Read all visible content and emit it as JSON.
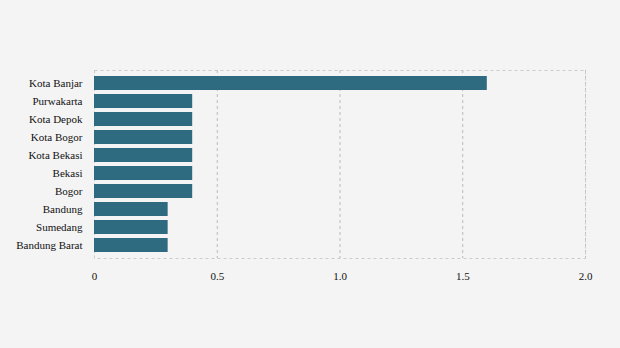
{
  "chart_data": {
    "type": "bar",
    "orientation": "horizontal",
    "categories": [
      "Kota Banjar",
      "Purwakarta",
      "Kota Depok",
      "Kota Bogor",
      "Kota Bekasi",
      "Bekasi",
      "Bogor",
      "Bandung",
      "Sumedang",
      "Bandung Barat"
    ],
    "values": [
      1.6,
      0.4,
      0.4,
      0.4,
      0.4,
      0.4,
      0.4,
      0.3,
      0.3,
      0.3
    ],
    "color": "#2e6b80",
    "xlim": [
      0,
      2
    ],
    "xticks": [
      0,
      0.5,
      {
        "value": 1,
        "label": "1.0"
      },
      1.5,
      {
        "value": 2,
        "label": "2.0"
      }
    ],
    "grid": true
  }
}
